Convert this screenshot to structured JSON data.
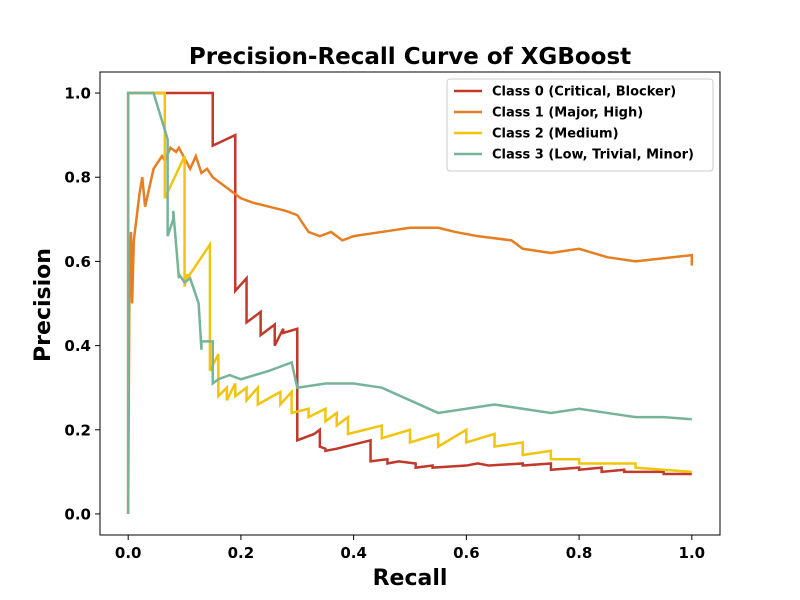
{
  "chart_data": {
    "type": "line",
    "title": "Precision-Recall Curve of XGBoost",
    "xlabel": "Recall",
    "ylabel": "Precision",
    "xlim": [
      -0.05,
      1.05
    ],
    "ylim": [
      -0.05,
      1.05
    ],
    "xticks": [
      0.0,
      0.2,
      0.4,
      0.6,
      0.8,
      1.0
    ],
    "xtick_labels": [
      "0.0",
      "0.2",
      "0.4",
      "0.6",
      "0.8",
      "1.0"
    ],
    "yticks": [
      0.0,
      0.2,
      0.4,
      0.6,
      0.8,
      1.0
    ],
    "ytick_labels": [
      "0.0",
      "0.2",
      "0.4",
      "0.6",
      "0.8",
      "1.0"
    ],
    "grid": false,
    "legend_position": "top-right",
    "series": [
      {
        "name": "Class 0 (Critical, Blocker)",
        "color": "#c0392b",
        "x": [
          0,
          0,
          0.15,
          0.15,
          0.19,
          0.19,
          0.21,
          0.21,
          0.235,
          0.235,
          0.26,
          0.26,
          0.275,
          0.275,
          0.3,
          0.3,
          0.3,
          0.33,
          0.34,
          0.34,
          0.35,
          0.35,
          0.37,
          0.43,
          0.43,
          0.46,
          0.46,
          0.48,
          0.51,
          0.51,
          0.54,
          0.54,
          0.6,
          0.62,
          0.64,
          0.64,
          0.7,
          0.7,
          0.75,
          0.75,
          0.8,
          0.8,
          0.84,
          0.84,
          0.88,
          0.88,
          0.95,
          0.95,
          1.0,
          1.0
        ],
        "y": [
          0.0,
          1.0,
          1.0,
          0.875,
          0.9,
          0.53,
          0.56,
          0.455,
          0.48,
          0.425,
          0.45,
          0.4,
          0.44,
          0.43,
          0.44,
          0.3,
          0.175,
          0.19,
          0.2,
          0.16,
          0.155,
          0.15,
          0.155,
          0.175,
          0.125,
          0.13,
          0.12,
          0.125,
          0.12,
          0.11,
          0.115,
          0.11,
          0.115,
          0.12,
          0.115,
          0.115,
          0.12,
          0.115,
          0.12,
          0.105,
          0.11,
          0.105,
          0.11,
          0.1,
          0.105,
          0.1,
          0.1,
          0.095,
          0.095,
          0.095
        ]
      },
      {
        "name": "Class 1 (Major, High)",
        "color": "#e67e22",
        "x": [
          0,
          0.002,
          0.005,
          0.007,
          0.01,
          0.02,
          0.025,
          0.03,
          0.045,
          0.06,
          0.065,
          0.075,
          0.085,
          0.09,
          0.11,
          0.12,
          0.13,
          0.14,
          0.15,
          0.16,
          0.17,
          0.18,
          0.2,
          0.22,
          0.25,
          0.28,
          0.3,
          0.32,
          0.34,
          0.36,
          0.38,
          0.4,
          0.45,
          0.5,
          0.55,
          0.58,
          0.62,
          0.68,
          0.7,
          0.75,
          0.8,
          0.85,
          0.9,
          1.0,
          1.0
        ],
        "y": [
          0.0,
          0.5,
          0.67,
          0.5,
          0.65,
          0.76,
          0.8,
          0.73,
          0.82,
          0.85,
          0.84,
          0.87,
          0.86,
          0.87,
          0.82,
          0.85,
          0.81,
          0.82,
          0.8,
          0.79,
          0.78,
          0.77,
          0.75,
          0.74,
          0.73,
          0.72,
          0.71,
          0.67,
          0.66,
          0.67,
          0.65,
          0.66,
          0.67,
          0.68,
          0.68,
          0.67,
          0.66,
          0.65,
          0.63,
          0.62,
          0.63,
          0.61,
          0.6,
          0.615,
          0.59
        ]
      },
      {
        "name": "Class 2 (Medium)",
        "color": "#f1c40f",
        "x": [
          0,
          0,
          0.065,
          0.065,
          0.1,
          0.1,
          0.105,
          0.105,
          0.145,
          0.145,
          0.16,
          0.16,
          0.175,
          0.175,
          0.19,
          0.19,
          0.21,
          0.21,
          0.23,
          0.23,
          0.27,
          0.27,
          0.29,
          0.29,
          0.32,
          0.32,
          0.35,
          0.35,
          0.37,
          0.37,
          0.39,
          0.39,
          0.45,
          0.45,
          0.5,
          0.5,
          0.55,
          0.55,
          0.6,
          0.6,
          0.65,
          0.65,
          0.7,
          0.7,
          0.75,
          0.75,
          0.8,
          0.8,
          0.9,
          0.9,
          1.0
        ],
        "y": [
          0.0,
          1.0,
          1.0,
          0.75,
          0.85,
          0.54,
          0.57,
          0.56,
          0.64,
          0.34,
          0.38,
          0.28,
          0.3,
          0.27,
          0.31,
          0.28,
          0.3,
          0.27,
          0.3,
          0.26,
          0.29,
          0.26,
          0.29,
          0.24,
          0.25,
          0.23,
          0.25,
          0.22,
          0.24,
          0.21,
          0.23,
          0.19,
          0.21,
          0.18,
          0.2,
          0.17,
          0.19,
          0.16,
          0.2,
          0.17,
          0.19,
          0.16,
          0.17,
          0.14,
          0.15,
          0.13,
          0.13,
          0.12,
          0.12,
          0.11,
          0.1
        ]
      },
      {
        "name": "Class 3 (Low, Trivial, Minor)",
        "color": "#76b49a",
        "x": [
          0,
          0,
          0.045,
          0.045,
          0.07,
          0.07,
          0.08,
          0.08,
          0.09,
          0.09,
          0.1,
          0.11,
          0.12,
          0.125,
          0.13,
          0.13,
          0.15,
          0.15,
          0.16,
          0.18,
          0.2,
          0.25,
          0.27,
          0.29,
          0.3,
          0.35,
          0.4,
          0.45,
          0.5,
          0.55,
          0.6,
          0.65,
          0.7,
          0.75,
          0.8,
          0.85,
          0.9,
          0.95,
          1.0
        ],
        "y": [
          0.0,
          1.0,
          1.0,
          1.0,
          0.89,
          0.66,
          0.7,
          0.72,
          0.56,
          0.57,
          0.55,
          0.56,
          0.52,
          0.5,
          0.39,
          0.41,
          0.41,
          0.31,
          0.32,
          0.33,
          0.32,
          0.34,
          0.35,
          0.36,
          0.3,
          0.31,
          0.31,
          0.3,
          0.27,
          0.24,
          0.25,
          0.26,
          0.25,
          0.24,
          0.25,
          0.24,
          0.23,
          0.23,
          0.225
        ]
      }
    ]
  }
}
